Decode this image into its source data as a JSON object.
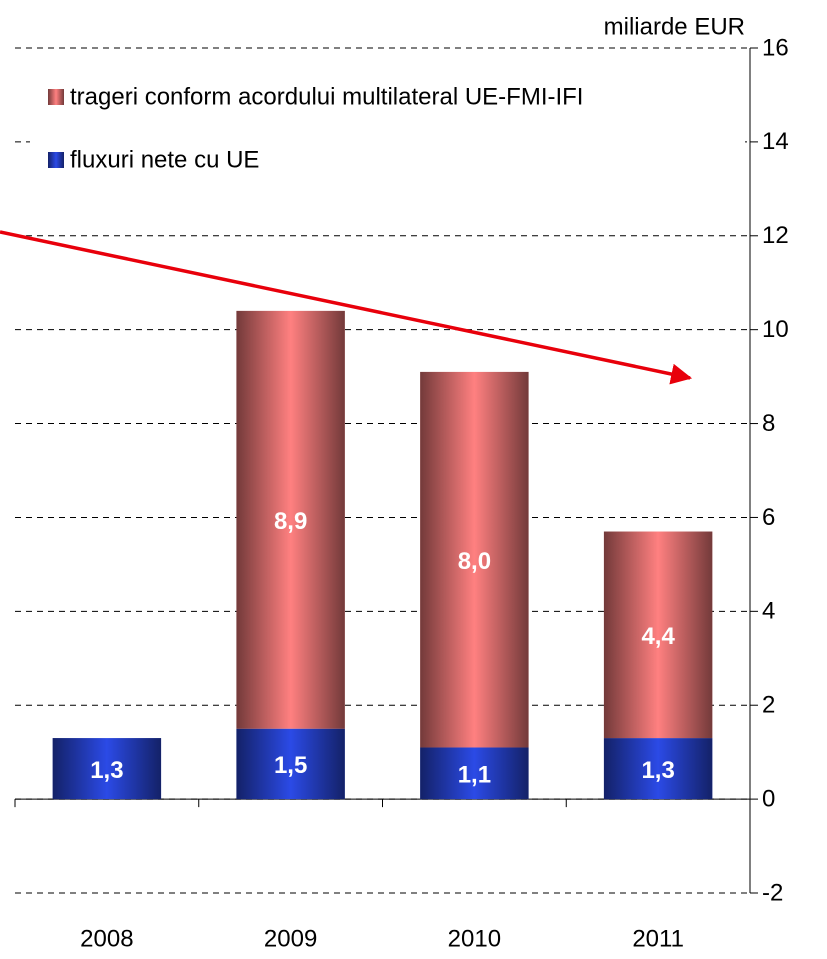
{
  "chart_data": {
    "type": "bar",
    "stacked": true,
    "unit_label": "miliarde EUR",
    "categories": [
      "2008",
      "2009",
      "2010",
      "2011"
    ],
    "series": [
      {
        "name": "fluxuri nete cu UE",
        "color": "#2b4ae6",
        "values": [
          1.3,
          1.5,
          1.1,
          1.3
        ],
        "value_labels": [
          "1,3",
          "1,5",
          "1,1",
          "1,3"
        ]
      },
      {
        "name": "trageri conform acordului multilateral UE-FMI-IFI",
        "color": "#ff8080",
        "values": [
          null,
          8.9,
          8.0,
          4.4
        ],
        "value_labels": [
          null,
          "8,9",
          "8,0",
          "4,4"
        ]
      }
    ],
    "ylim": [
      -2,
      16
    ],
    "yticks": [
      -2,
      0,
      2,
      4,
      6,
      8,
      10,
      12,
      14,
      16
    ],
    "grid": true,
    "y_axis_side": "right"
  }
}
